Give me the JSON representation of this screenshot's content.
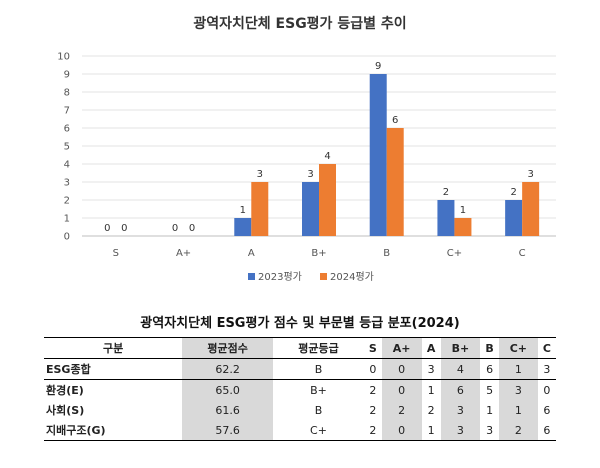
{
  "chart_data": [
    {
      "type": "bar",
      "title": "광역자치단체 ESG평가 등급별 추이",
      "categories": [
        "S",
        "A+",
        "A",
        "B+",
        "B",
        "C+",
        "C"
      ],
      "series": [
        {
          "name": "2023평가",
          "values": [
            0,
            0,
            1,
            3,
            9,
            2,
            2
          ],
          "color": "#4472C4"
        },
        {
          "name": "2024평가",
          "values": [
            0,
            0,
            3,
            4,
            6,
            1,
            3
          ],
          "color": "#ED7D31"
        }
      ],
      "ylim": [
        0,
        10
      ],
      "yticks": [
        "0",
        "1",
        "2",
        "3",
        "4",
        "5",
        "6",
        "7",
        "8",
        "9",
        "10"
      ],
      "grid": true,
      "legend": "bottom"
    },
    {
      "type": "table",
      "title": "광역자치단체 ESG평가 점수 및 부문별 등급 분포(2024)",
      "columns": [
        "구분",
        "평균점수",
        "평균등급",
        "S",
        "A+",
        "A",
        "B+",
        "B",
        "C+",
        "C"
      ],
      "rows": [
        [
          "ESG종합",
          "62.2",
          "B",
          "0",
          "0",
          "3",
          "4",
          "6",
          "1",
          "3"
        ],
        [
          "환경(E)",
          "65.0",
          "B+",
          "2",
          "0",
          "1",
          "6",
          "5",
          "3",
          "0"
        ],
        [
          "사회(S)",
          "61.6",
          "B",
          "2",
          "2",
          "2",
          "3",
          "1",
          "1",
          "6"
        ],
        [
          "지배구조(G)",
          "57.6",
          "C+",
          "2",
          "0",
          "1",
          "3",
          "3",
          "2",
          "6"
        ]
      ]
    }
  ]
}
